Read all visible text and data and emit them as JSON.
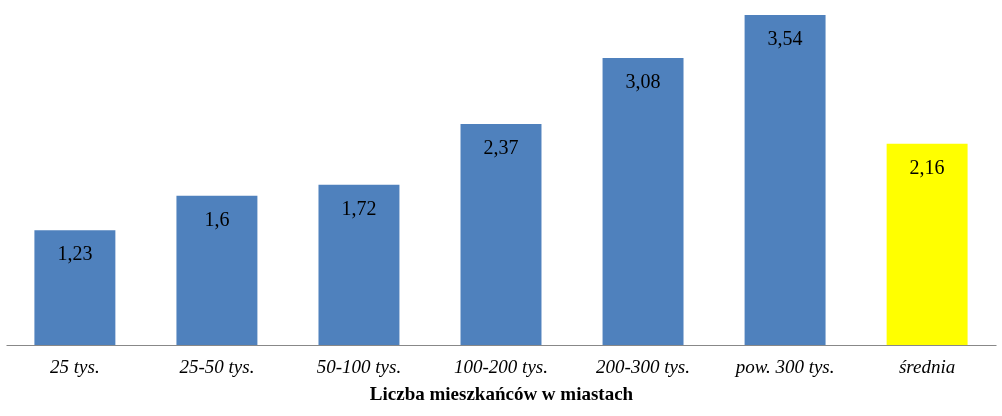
{
  "chart_data": {
    "type": "bar",
    "xlabel": "Liczba mieszkańców w miastach",
    "categories": [
      "25 tys.",
      "25-50 tys.",
      "50-100 tys.",
      "100-200 tys.",
      "200-300 tys.",
      "pow. 300 tys.",
      "średnia"
    ],
    "values": [
      1.23,
      1.6,
      1.72,
      2.37,
      3.08,
      3.54,
      2.16
    ],
    "colors": [
      "#4f81bd",
      "#4f81bd",
      "#4f81bd",
      "#4f81bd",
      "#4f81bd",
      "#4f81bd",
      "#ffff00"
    ],
    "value_labels": [
      "1,23",
      "1,6",
      "1,72",
      "2,37",
      "3,08",
      "3,54",
      "2,16"
    ],
    "grid": false
  }
}
